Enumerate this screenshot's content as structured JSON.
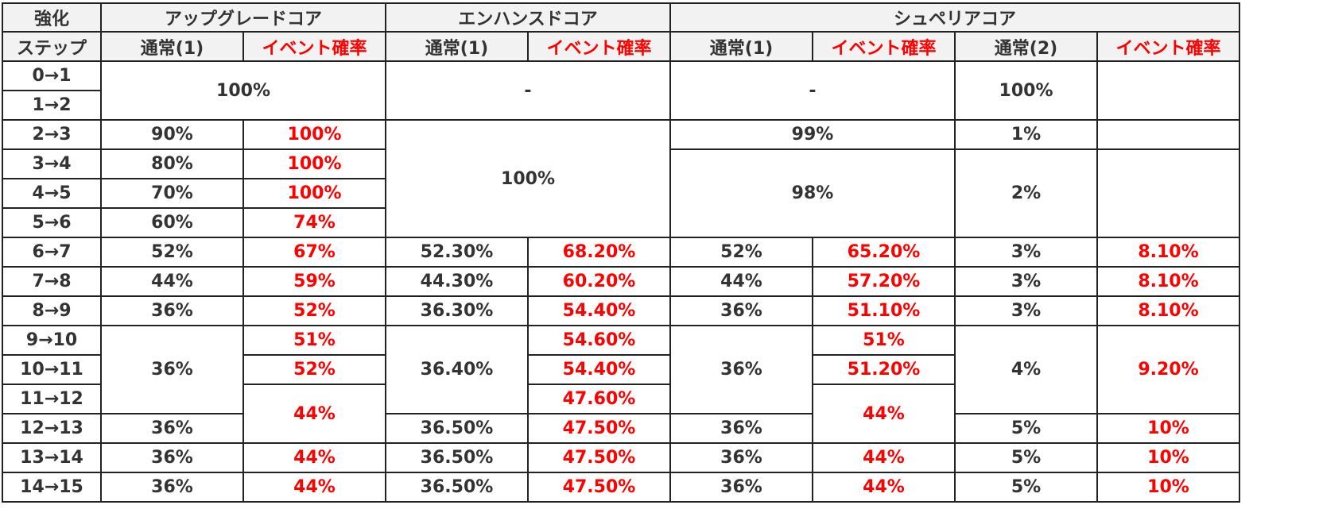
{
  "header": {
    "corner_line1": "強化",
    "corner_line2": "ステップ",
    "group_upgrade": "アップグレードコア",
    "group_enhanced": "エンハンスドコア",
    "group_superior": "シュペリアコア",
    "normal1": "通常(1)",
    "event": "イベント確率",
    "normal2": "通常(2)"
  },
  "steps": [
    "0→1",
    "1→2",
    "2→3",
    "3→4",
    "4→5",
    "5→6",
    "6→7",
    "7→8",
    "8→9",
    "9→10",
    "10→11",
    "11→12",
    "12→13",
    "13→14",
    "14→15"
  ],
  "upgrade": {
    "normal_0_2": "100%",
    "normal": [
      "90%",
      "80%",
      "70%",
      "60%",
      "52%",
      "44%",
      "36%",
      "36%",
      "36%",
      "36%",
      "36%"
    ],
    "event": [
      "100%",
      "100%",
      "100%",
      "74%",
      "67%",
      "59%",
      "52%",
      "51%",
      "52%",
      "44%",
      "44%",
      "44%"
    ]
  },
  "enhanced": {
    "all_0_2": "-",
    "all_2_6": "100%",
    "normal": [
      "52.30%",
      "44.30%",
      "36.30%",
      "36.40%",
      "36.50%",
      "36.50%",
      "36.50%"
    ],
    "event": [
      "68.20%",
      "60.20%",
      "54.40%",
      "54.60%",
      "54.40%",
      "47.60%",
      "47.50%",
      "47.50%",
      "47.50%"
    ]
  },
  "superior": {
    "n1_0_2": "-",
    "n1_2_3": "99%",
    "n1_3_6": "98%",
    "n1": [
      "52%",
      "44%",
      "36%",
      "36%",
      "36%",
      "36%",
      "36%"
    ],
    "event": [
      "65.20%",
      "57.20%",
      "51.10%",
      "51%",
      "51.20%",
      "44%",
      "44%",
      "44%"
    ],
    "n2_0_2": "100%",
    "n2_2_3": "1%",
    "n2_3_6": "2%",
    "n2": [
      "3%",
      "3%",
      "3%",
      "4%",
      "5%",
      "5%",
      "5%"
    ],
    "event2": [
      "8.10%",
      "8.10%",
      "8.10%",
      "9.20%",
      "10%",
      "10%",
      "10%"
    ]
  }
}
